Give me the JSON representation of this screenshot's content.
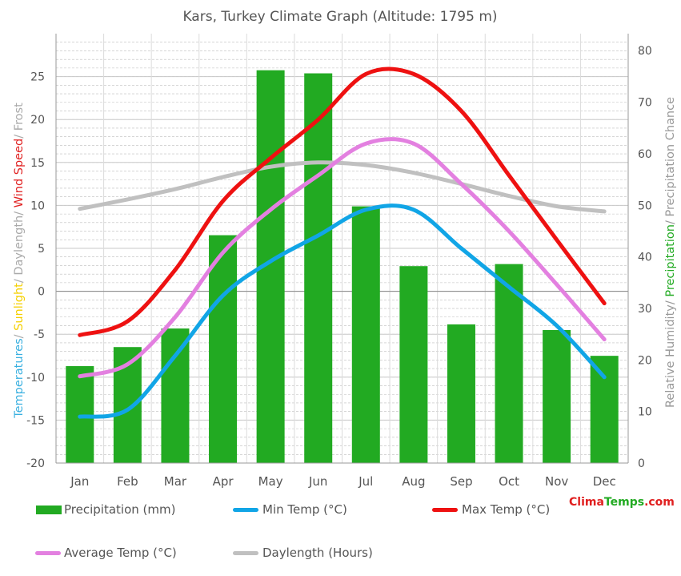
{
  "chart_data": {
    "type": "bar+line",
    "title": "Kars, Turkey Climate Graph (Altitude: 1795 m)",
    "categories": [
      "Jan",
      "Feb",
      "Mar",
      "Apr",
      "May",
      "Jun",
      "Jul",
      "Aug",
      "Sep",
      "Oct",
      "Nov",
      "Dec"
    ],
    "left_axis": {
      "ylim": [
        -20,
        30
      ],
      "ticks": [
        -20,
        -15,
        -10,
        -5,
        0,
        5,
        10,
        15,
        20,
        25
      ],
      "label_parts": [
        {
          "text": "Temperatures",
          "color": "#3ab0e0"
        },
        {
          "text": "/ ",
          "color": "#aaaaaa"
        },
        {
          "text": "Sunlight",
          "color": "#f5d000"
        },
        {
          "text": "/ Daylength",
          "color": "#aaaaaa"
        },
        {
          "text": "/ ",
          "color": "#aaaaaa"
        },
        {
          "text": "Wind Speed",
          "color": "#e02020"
        },
        {
          "text": "/ Frost",
          "color": "#aaaaaa"
        }
      ]
    },
    "right_axis": {
      "ylim": [
        0,
        83.3
      ],
      "ticks": [
        0,
        10,
        20,
        30,
        40,
        50,
        60,
        70,
        80
      ],
      "label_parts": [
        {
          "text": "Relative Humidity/ ",
          "color": "#999999"
        },
        {
          "text": "Precipitation",
          "color": "#22aa22"
        },
        {
          "text": "/ Precipitation Chance",
          "color": "#999999"
        }
      ]
    },
    "series": [
      {
        "name": "Precipitation (mm)",
        "kind": "bar",
        "axis": "right",
        "color": "#22aa22",
        "values": [
          18.8,
          22.5,
          26.1,
          44.2,
          76.2,
          75.6,
          49.8,
          38.2,
          26.9,
          38.6,
          25.8,
          20.8
        ]
      },
      {
        "name": "Min Temp (°C)",
        "kind": "line",
        "axis": "left",
        "color": "#11a5e6",
        "values": [
          -14.6,
          -13.8,
          -7.5,
          -0.5,
          3.5,
          6.5,
          9.5,
          9.5,
          5.0,
          0.5,
          -4.0,
          -10.0
        ]
      },
      {
        "name": "Max Temp (°C)",
        "kind": "line",
        "axis": "left",
        "color": "#ee1111",
        "values": [
          -5.1,
          -3.5,
          2.5,
          10.5,
          15.5,
          20.0,
          25.3,
          25.3,
          21.0,
          13.5,
          6.0,
          -1.4
        ]
      },
      {
        "name": "Average Temp (°C)",
        "kind": "line",
        "axis": "left",
        "color": "#e380e0",
        "values": [
          -9.9,
          -8.5,
          -3.0,
          4.5,
          9.5,
          13.5,
          17.2,
          17.2,
          12.5,
          7.0,
          0.8,
          -5.6
        ]
      },
      {
        "name": "Daylength (Hours)",
        "kind": "line",
        "axis": "left",
        "color": "#c0c0c0",
        "values": [
          9.6,
          10.7,
          11.9,
          13.3,
          14.5,
          15.0,
          14.7,
          13.8,
          12.5,
          11.1,
          9.9,
          9.3
        ]
      }
    ]
  },
  "brand": {
    "part1": "Clima",
    "part2": "Temps",
    "part3": ".com",
    "color_red": "#e02020",
    "color_green": "#22aa22"
  }
}
